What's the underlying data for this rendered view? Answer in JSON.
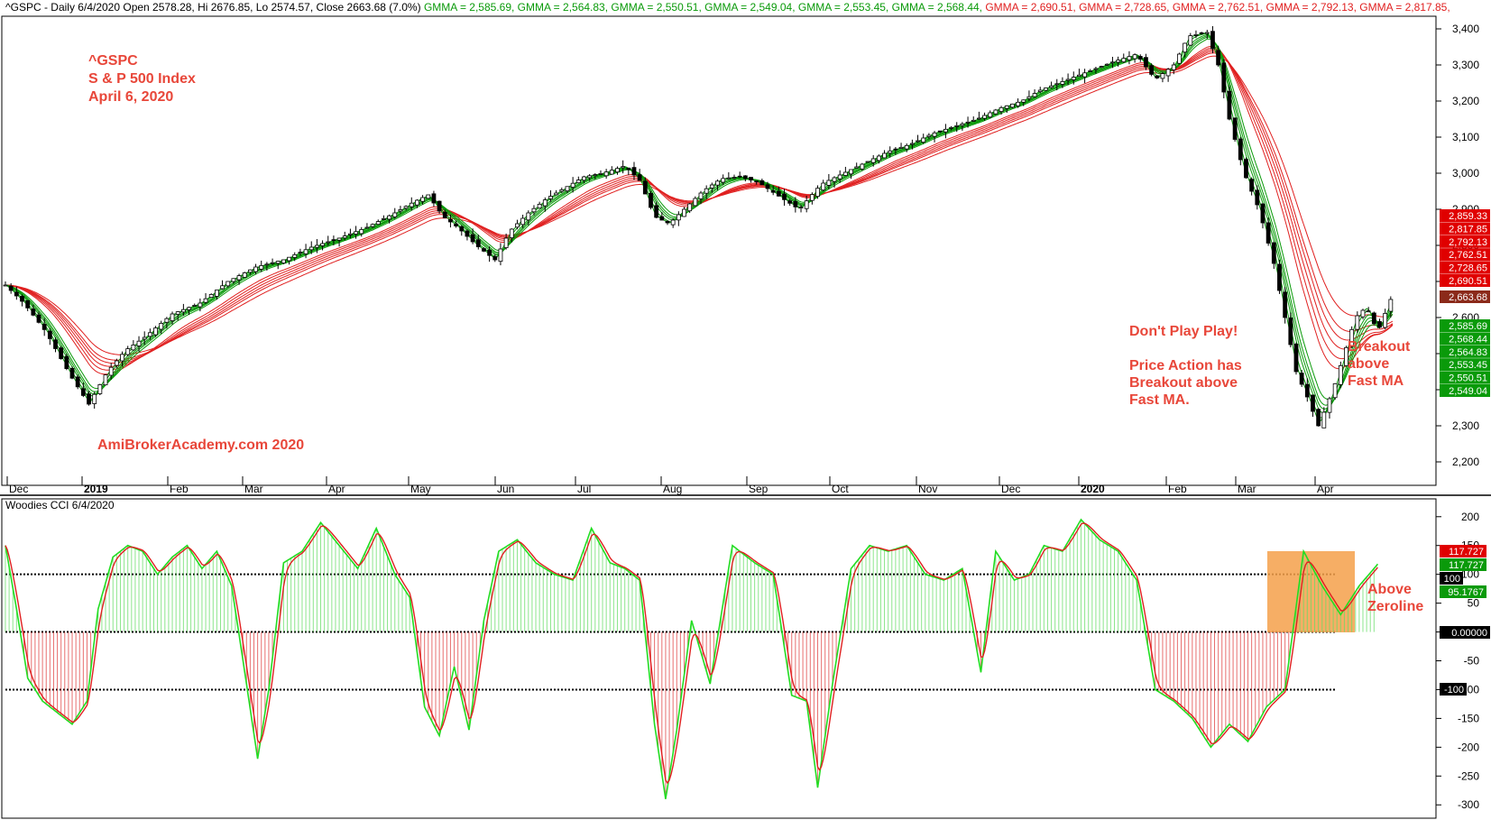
{
  "header": {
    "prefix": "^GSPC - Daily 6/4/2020 Open 2578.28, Hi 2676.85, Lo 2574.57, Close 2663.68 (7.0%)",
    "gmma_green": [
      "GMMA = 2,585.69,",
      "GMMA = 2,564.83,",
      "GMMA = 2,550.51,",
      "GMMA = 2,549.04,",
      "GMMA = 2,553.45,",
      "GMMA = 2,568.44,"
    ],
    "gmma_red": [
      "GMMA = 2,690.51,",
      "GMMA = 2,728.65,",
      "GMMA = 2,762.51,",
      "GMMA = 2,792.13,",
      "GMMA = 2,817.85,"
    ]
  },
  "annotations": {
    "ticker": "^GSPC",
    "index_name": "S & P 500 Index",
    "date": "April 6, 2020",
    "watermark": "AmiBrokerAcademy.com   2020",
    "dont_play": "Don't Play Play!",
    "price_action": [
      "Price Action has",
      "Breakout above",
      "Fast MA."
    ],
    "breakout": [
      "Breakout",
      "above",
      "Fast MA"
    ],
    "above_zero": [
      "Above",
      "Zeroline"
    ]
  },
  "lower_title": "Woodies CCI  6/4/2020",
  "colors": {
    "green": "#0a9a0a",
    "red": "#e02020",
    "cci_green": "#22dd22",
    "cci_red": "#e02020",
    "orange_box": "#f5a04a",
    "annotation": "#e8473a",
    "up_candle": "#ffffff",
    "down_candle": "#000000"
  },
  "chart_data": [
    {
      "type": "candlestick",
      "title": "^GSPC S & P 500 Index",
      "ylim": [
        2150,
        3430
      ],
      "yticks": [
        "2,200",
        "2,300",
        "2,400",
        "2,500",
        "2,600",
        "2,700",
        "2,800",
        "2,900",
        "3,000",
        "3,100",
        "3,200",
        "3,300",
        "3,400"
      ],
      "yticks_values": [
        2200,
        2300,
        2400,
        2500,
        2600,
        2700,
        2800,
        2900,
        3000,
        3100,
        3200,
        3300,
        3400
      ],
      "x_months": [
        "Dec",
        "2019",
        "Feb",
        "Mar",
        "Apr",
        "May",
        "Jun",
        "Jul",
        "Aug",
        "Sep",
        "Oct",
        "Nov",
        "Dec",
        "2020",
        "Feb",
        "Mar",
        "Apr"
      ],
      "x_months_bold": [
        false,
        true,
        false,
        false,
        false,
        false,
        false,
        false,
        false,
        false,
        false,
        false,
        false,
        true,
        false,
        false,
        false
      ],
      "close_path": [
        [
          0,
          2690
        ],
        [
          10,
          2640
        ],
        [
          22,
          2560
        ],
        [
          35,
          2440
        ],
        [
          45,
          2360
        ],
        [
          55,
          2450
        ],
        [
          65,
          2510
        ],
        [
          75,
          2545
        ],
        [
          90,
          2610
        ],
        [
          105,
          2640
        ],
        [
          120,
          2700
        ],
        [
          135,
          2740
        ],
        [
          150,
          2760
        ],
        [
          165,
          2795
        ],
        [
          180,
          2820
        ],
        [
          195,
          2850
        ],
        [
          210,
          2890
        ],
        [
          220,
          2920
        ],
        [
          228,
          2940
        ],
        [
          236,
          2880
        ],
        [
          244,
          2850
        ],
        [
          254,
          2800
        ],
        [
          264,
          2760
        ],
        [
          272,
          2840
        ],
        [
          282,
          2890
        ],
        [
          292,
          2930
        ],
        [
          302,
          2960
        ],
        [
          312,
          2990
        ],
        [
          322,
          3000
        ],
        [
          334,
          3020
        ],
        [
          342,
          2980
        ],
        [
          350,
          2880
        ],
        [
          358,
          2860
        ],
        [
          366,
          2900
        ],
        [
          376,
          2950
        ],
        [
          386,
          2985
        ],
        [
          396,
          2990
        ],
        [
          406,
          2975
        ],
        [
          416,
          2940
        ],
        [
          428,
          2900
        ],
        [
          440,
          2970
        ],
        [
          452,
          3000
        ],
        [
          464,
          3030
        ],
        [
          476,
          3060
        ],
        [
          488,
          3080
        ],
        [
          500,
          3110
        ],
        [
          512,
          3130
        ],
        [
          524,
          3150
        ],
        [
          536,
          3180
        ],
        [
          548,
          3200
        ],
        [
          558,
          3230
        ],
        [
          568,
          3250
        ],
        [
          578,
          3270
        ],
        [
          588,
          3290
        ],
        [
          598,
          3310
        ],
        [
          610,
          3330
        ],
        [
          620,
          3260
        ],
        [
          630,
          3300
        ],
        [
          638,
          3380
        ],
        [
          648,
          3390
        ],
        [
          654,
          3300
        ],
        [
          660,
          3150
        ],
        [
          668,
          3000
        ],
        [
          676,
          2900
        ],
        [
          684,
          2750
        ],
        [
          690,
          2600
        ],
        [
          696,
          2450
        ],
        [
          702,
          2380
        ],
        [
          708,
          2300
        ],
        [
          716,
          2400
        ],
        [
          722,
          2500
        ],
        [
          728,
          2600
        ],
        [
          734,
          2630
        ],
        [
          740,
          2560
        ],
        [
          748,
          2663
        ]
      ],
      "series": [
        {
          "name": "GMMA",
          "group": "short",
          "last": 2585.69
        },
        {
          "name": "GMMA",
          "group": "short",
          "last": 2564.83
        },
        {
          "name": "GMMA",
          "group": "short",
          "last": 2550.51
        },
        {
          "name": "GMMA",
          "group": "short",
          "last": 2549.04
        },
        {
          "name": "GMMA",
          "group": "short",
          "last": 2553.45
        },
        {
          "name": "GMMA",
          "group": "short",
          "last": 2568.44
        },
        {
          "name": "GMMA",
          "group": "long",
          "last": 2690.51
        },
        {
          "name": "GMMA",
          "group": "long",
          "last": 2728.65
        },
        {
          "name": "GMMA",
          "group": "long",
          "last": 2762.51
        },
        {
          "name": "GMMA",
          "group": "long",
          "last": 2792.13
        },
        {
          "name": "GMMA",
          "group": "long",
          "last": 2817.85
        },
        {
          "name": "GMMA",
          "group": "long",
          "last": 2859.33
        }
      ],
      "price_tags_red": [
        "2,859.33",
        "2,817.85",
        "2,792.13",
        "2,762.51",
        "2,728.65",
        "2,690.51"
      ],
      "price_tags_green": [
        "2,585.69",
        "2,568.44",
        "2,564.83",
        "2,553.45",
        "2,550.51",
        "2,549.04"
      ],
      "close_tag": "2,663.68",
      "last_close": 2663.68
    },
    {
      "type": "line",
      "title": "Woodies CCI",
      "ylim": [
        -320,
        220
      ],
      "yticks": [
        "-300",
        "-250",
        "-200",
        "-150",
        "-100",
        "-50",
        "0",
        "50",
        "100",
        "150",
        "200"
      ],
      "yticks_values": [
        -300,
        -250,
        -200,
        -150,
        -100,
        -50,
        0,
        50,
        100,
        150,
        200
      ],
      "reference_lines": [
        100,
        0,
        -100
      ],
      "cci_path": [
        [
          0,
          150
        ],
        [
          6,
          40
        ],
        [
          12,
          -80
        ],
        [
          20,
          -120
        ],
        [
          28,
          -140
        ],
        [
          36,
          -160
        ],
        [
          44,
          -120
        ],
        [
          50,
          40
        ],
        [
          58,
          130
        ],
        [
          66,
          150
        ],
        [
          74,
          140
        ],
        [
          82,
          100
        ],
        [
          90,
          130
        ],
        [
          98,
          150
        ],
        [
          106,
          110
        ],
        [
          114,
          140
        ],
        [
          122,
          80
        ],
        [
          130,
          -90
        ],
        [
          136,
          -220
        ],
        [
          142,
          -100
        ],
        [
          150,
          120
        ],
        [
          160,
          140
        ],
        [
          170,
          190
        ],
        [
          180,
          150
        ],
        [
          190,
          110
        ],
        [
          200,
          180
        ],
        [
          210,
          100
        ],
        [
          218,
          60
        ],
        [
          226,
          -130
        ],
        [
          234,
          -180
        ],
        [
          242,
          -60
        ],
        [
          250,
          -170
        ],
        [
          258,
          20
        ],
        [
          266,
          140
        ],
        [
          276,
          160
        ],
        [
          286,
          120
        ],
        [
          296,
          100
        ],
        [
          306,
          90
        ],
        [
          316,
          180
        ],
        [
          326,
          120
        ],
        [
          334,
          110
        ],
        [
          342,
          90
        ],
        [
          350,
          -160
        ],
        [
          356,
          -290
        ],
        [
          362,
          -170
        ],
        [
          370,
          20
        ],
        [
          380,
          -90
        ],
        [
          392,
          150
        ],
        [
          404,
          120
        ],
        [
          414,
          100
        ],
        [
          424,
          -110
        ],
        [
          432,
          -120
        ],
        [
          438,
          -270
        ],
        [
          446,
          -90
        ],
        [
          456,
          110
        ],
        [
          466,
          150
        ],
        [
          476,
          140
        ],
        [
          486,
          150
        ],
        [
          496,
          100
        ],
        [
          506,
          90
        ],
        [
          516,
          110
        ],
        [
          526,
          -70
        ],
        [
          534,
          140
        ],
        [
          544,
          90
        ],
        [
          552,
          100
        ],
        [
          560,
          150
        ],
        [
          570,
          140
        ],
        [
          580,
          195
        ],
        [
          590,
          160
        ],
        [
          600,
          140
        ],
        [
          610,
          90
        ],
        [
          620,
          -100
        ],
        [
          630,
          -120
        ],
        [
          640,
          -150
        ],
        [
          650,
          -200
        ],
        [
          660,
          -160
        ],
        [
          670,
          -190
        ],
        [
          680,
          -130
        ],
        [
          690,
          -100
        ],
        [
          700,
          140
        ],
        [
          710,
          80
        ],
        [
          720,
          30
        ],
        [
          730,
          80
        ],
        [
          740,
          117.727
        ]
      ],
      "tags": {
        "cci_red": "117.727",
        "cci_green": "117.727",
        "level_100": "100",
        "cci_secondary": "95.1767",
        "zero": "0.00000",
        "level_minus_100": "-100"
      }
    }
  ]
}
